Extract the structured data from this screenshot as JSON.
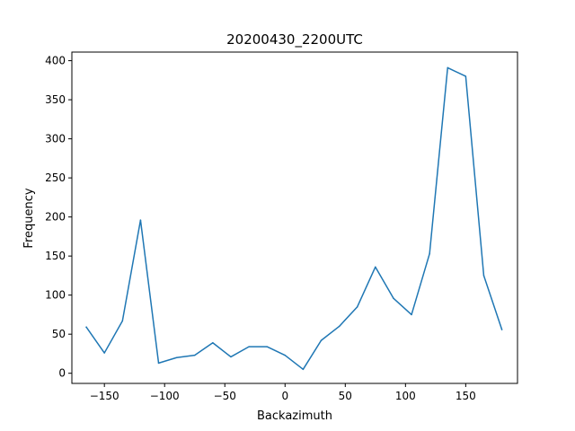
{
  "chart_data": {
    "type": "line",
    "title": "20200430_2200UTC",
    "xlabel": "Backazimuth",
    "ylabel": "Frequency",
    "xlim": [
      -177,
      193
    ],
    "ylim": [
      -13,
      411
    ],
    "x_ticks": [
      -150,
      -100,
      -50,
      0,
      50,
      100,
      150
    ],
    "x_tick_labels": [
      "−150",
      "−100",
      "−50",
      "0",
      "50",
      "100",
      "150"
    ],
    "y_ticks": [
      0,
      50,
      100,
      150,
      200,
      250,
      300,
      350,
      400
    ],
    "y_tick_labels": [
      "0",
      "50",
      "100",
      "150",
      "200",
      "250",
      "300",
      "350",
      "400"
    ],
    "grid": false,
    "color": "#1f77b4",
    "series": [
      {
        "x": [
          -165,
          -150,
          -135,
          -120,
          -105,
          -90,
          -75,
          -60,
          -45,
          -30,
          -15,
          0,
          15,
          30,
          45,
          60,
          75,
          90,
          105,
          120,
          135,
          150,
          165,
          180
        ],
        "values": [
          59,
          26,
          67,
          196,
          13,
          20,
          23,
          39,
          21,
          34,
          34,
          23,
          5,
          42,
          60,
          85,
          136,
          96,
          75,
          153,
          391,
          380,
          125,
          56
        ]
      }
    ]
  }
}
